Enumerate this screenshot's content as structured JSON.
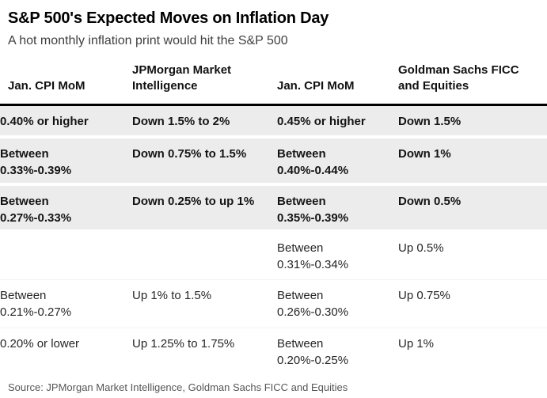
{
  "chart_data": {
    "type": "table",
    "title": "S&P 500's Expected Moves on Inflation Day",
    "subtitle": "A hot monthly inflation print would hit the S&P 500",
    "columns": [
      "Jan. CPI MoM",
      "JPMorgan Market\nIntelligence",
      "Jan. CPI MoM",
      "Goldman Sachs FICC\nand Equities"
    ],
    "rows": [
      {
        "highlighted": true,
        "cells": [
          "0.40% or higher",
          "Down 1.5% to 2%",
          "0.45% or higher",
          "Down 1.5%"
        ]
      },
      {
        "highlighted": true,
        "cells": [
          "Between\n0.33%-0.39%",
          "Down 0.75% to 1.5%",
          "Between\n0.40%-0.44%",
          "Down 1%"
        ]
      },
      {
        "highlighted": true,
        "cells": [
          "Between\n0.27%-0.33%",
          "Down 0.25% to up 1%",
          "Between\n0.35%-0.39%",
          "Down 0.5%"
        ]
      },
      {
        "highlighted": false,
        "cells": [
          "",
          "",
          "Between\n0.31%-0.34%",
          "Up 0.5%"
        ]
      },
      {
        "highlighted": false,
        "cells": [
          "Between\n0.21%-0.27%",
          "Up 1% to 1.5%",
          "Between\n0.26%-0.30%",
          "Up 0.75%"
        ]
      },
      {
        "highlighted": false,
        "cells": [
          "0.20% or lower",
          "Up 1.25% to 1.75%",
          "Between\n0.20%-0.25%",
          "Up 1%"
        ]
      }
    ],
    "source": "Source: JPMorgan Market Intelligence, Goldman Sachs FICC and Equities",
    "layout_hints": {
      "highlight_meaning": "hot inflation scenarios shown bold on gray bands",
      "grid": "off",
      "legend": "none"
    }
  },
  "colors": {
    "highlight_row_bg": "#ececec",
    "header_rule": "#000000",
    "title_text": "#000000",
    "subtitle_text": "#3f3f3f",
    "source_text": "#565656"
  }
}
